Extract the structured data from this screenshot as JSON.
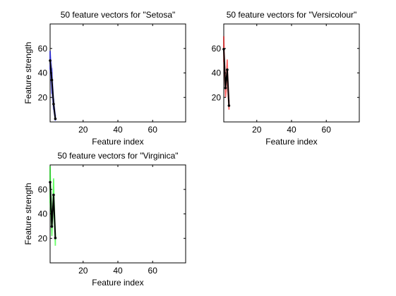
{
  "chart_data": [
    {
      "type": "line",
      "title": "50 feature vectors for \"Setosa\"",
      "xlabel": "Feature index",
      "ylabel": "Feature strength",
      "xlim": [
        1,
        79
      ],
      "ylim": [
        0,
        80
      ],
      "xticks": [
        20,
        40,
        60
      ],
      "yticks": [
        20,
        40,
        60
      ],
      "grid": false,
      "cloud_color": "#0000ff",
      "categories": [
        1,
        2,
        3,
        4
      ],
      "series": [
        {
          "values": [
            50.1,
            34.2,
            14.6,
            2.5
          ]
        }
      ],
      "spread": {
        "low": [
          43,
          23,
          10,
          1
        ],
        "high": [
          58,
          44,
          19,
          6
        ]
      }
    },
    {
      "type": "line",
      "title": "50 feature vectors for \"Versicolour\"",
      "xlabel": "Feature index",
      "ylabel": "",
      "xlim": [
        1,
        79
      ],
      "ylim": [
        0,
        80
      ],
      "xticks": [
        20,
        40,
        60
      ],
      "yticks": [
        20,
        40,
        60
      ],
      "grid": false,
      "cloud_color": "#ff0000",
      "categories": [
        1,
        2,
        3,
        4
      ],
      "series": [
        {
          "values": [
            59.4,
            27.7,
            42.6,
            13.3
          ]
        }
      ],
      "spread": {
        "low": [
          49,
          20,
          30,
          10
        ],
        "high": [
          70,
          34,
          51,
          18
        ]
      }
    },
    {
      "type": "line",
      "title": "50 feature vectors for \"Virginica\"",
      "xlabel": "Feature index",
      "ylabel": "Feature strength",
      "xlim": [
        1,
        79
      ],
      "ylim": [
        0,
        80
      ],
      "xticks": [
        20,
        40,
        60
      ],
      "yticks": [
        20,
        40,
        60
      ],
      "grid": false,
      "cloud_color": "#00ff00",
      "categories": [
        1,
        2,
        3,
        4
      ],
      "series": [
        {
          "values": [
            65.9,
            29.7,
            55.5,
            20.3
          ]
        }
      ],
      "spread": {
        "low": [
          49,
          22,
          45,
          14
        ],
        "high": [
          79,
          38,
          69,
          25
        ]
      }
    }
  ]
}
